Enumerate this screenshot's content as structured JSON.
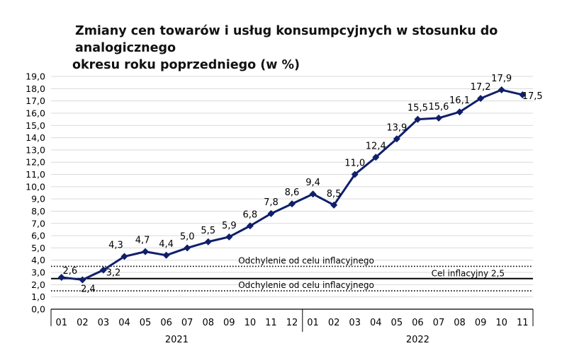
{
  "title_line1": "Zmiany cen towarów i usług konsumpcyjnych w stosunku do analogicznego",
  "title_line2": "okresu roku poprzedniego (w %)",
  "colors": {
    "series": "#0f1f6b",
    "grid": "#d9d9d9",
    "target": "#000000"
  },
  "chart_data": {
    "type": "line",
    "title": "Zmiany cen towarów i usług konsumpcyjnych w stosunku do analogicznego okresu roku poprzedniego (w %)",
    "categories": [
      "01",
      "02",
      "03",
      "04",
      "05",
      "06",
      "07",
      "08",
      "09",
      "10",
      "11",
      "12",
      "01",
      "02",
      "03",
      "04",
      "05",
      "06",
      "07",
      "08",
      "09",
      "10",
      "11"
    ],
    "years": [
      {
        "label": "2021",
        "from": 0,
        "to": 11
      },
      {
        "label": "2022",
        "from": 12,
        "to": 22
      }
    ],
    "values": [
      2.6,
      2.4,
      3.2,
      4.3,
      4.7,
      4.4,
      5.0,
      5.5,
      5.9,
      6.8,
      7.8,
      8.6,
      9.4,
      8.5,
      11.0,
      12.4,
      13.9,
      15.5,
      15.6,
      16.1,
      17.2,
      17.9,
      17.5
    ],
    "value_labels": [
      "2,6",
      "2,4",
      "3,2",
      "4,3",
      "4,7",
      "4,4",
      "5,0",
      "5,5",
      "5,9",
      "6,8",
      "7,8",
      "8,6",
      "9,4",
      "8,5",
      "11,0",
      "12,4",
      "13,9",
      "15,5",
      "15,6",
      "16,1",
      "17,2",
      "17,9",
      "17,5"
    ],
    "ylim": [
      0,
      19
    ],
    "yticks": [
      "0,0",
      "1,0",
      "2,0",
      "3,0",
      "4,0",
      "5,0",
      "6,0",
      "7,0",
      "8,0",
      "9,0",
      "10,0",
      "11,0",
      "12,0",
      "13,0",
      "14,0",
      "15,0",
      "16,0",
      "17,0",
      "18,0",
      "19,0"
    ],
    "grid": true,
    "reference_lines": [
      {
        "value": 2.5,
        "style": "solid",
        "label": "Cel inflacyjny 2,5"
      },
      {
        "value": 3.5,
        "style": "dotted",
        "label": "Odchylenie od celu inflacyjnego"
      },
      {
        "value": 1.5,
        "style": "dotted",
        "label": "Odchylenie od celu inflacyjnego"
      }
    ]
  }
}
